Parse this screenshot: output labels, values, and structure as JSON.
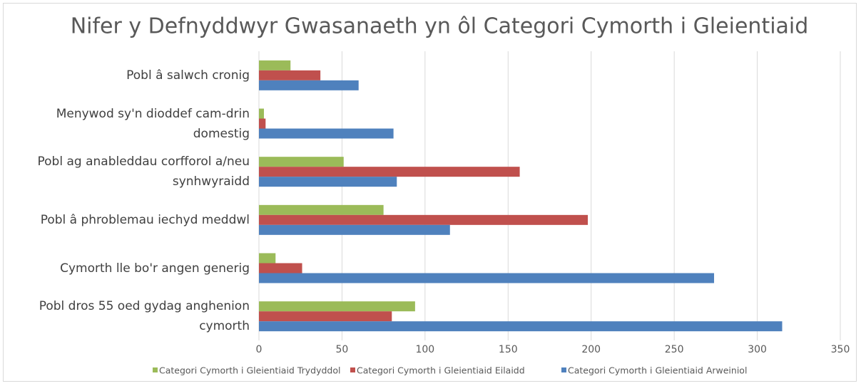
{
  "chart_data": {
    "type": "bar",
    "orientation": "horizontal",
    "title": "Nifer y Defnyddwyr Gwasanaeth yn ôl Categori Cymorth i Gleientiaid",
    "categories": [
      "Pobl â salwch cronig",
      "Menywod sy'n dioddef cam-drin domestig",
      "Pobl ag anableddau corfforol a/neu synhwyraidd",
      "Pobl â phroblemau iechyd meddwl",
      "Cymorth lle bo'r angen generig",
      "Pobl dros 55 oed gydag anghenion cymorth"
    ],
    "series": [
      {
        "name": "Categori Cymorth i Gleientiaid Trydyddol",
        "color": "#9bbb59",
        "values": [
          19,
          3,
          51,
          75,
          10,
          94
        ]
      },
      {
        "name": "Categori Cymorth i Gleientiaid Eilaidd",
        "color": "#c0504d",
        "values": [
          37,
          4,
          157,
          198,
          26,
          80
        ]
      },
      {
        "name": "Categori Cymorth i Gleientiaid Arweiniol",
        "color": "#4f81bd",
        "values": [
          60,
          81,
          83,
          115,
          274,
          315
        ]
      }
    ],
    "xlim": [
      0,
      350
    ],
    "xticks": [
      0,
      50,
      100,
      150,
      200,
      250,
      300,
      350
    ],
    "grid": true,
    "legend": "bottom"
  }
}
